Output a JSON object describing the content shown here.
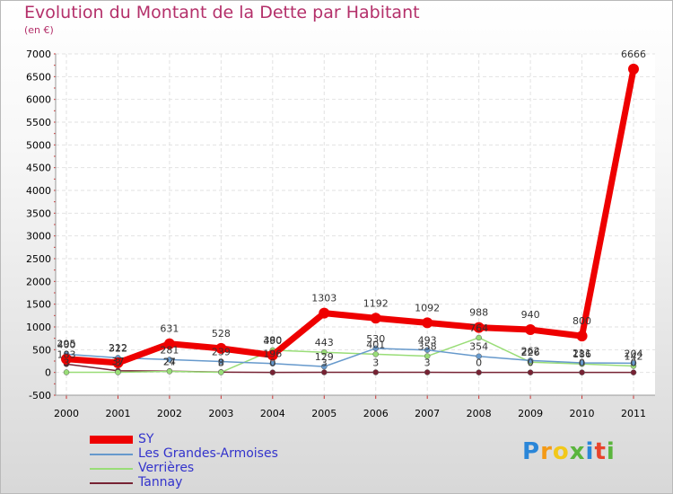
{
  "chart_data": {
    "type": "line",
    "title": "Evolution du Montant de la Dette par Habitant",
    "subtitle": "(en €)",
    "xlabel": "",
    "ylabel": "",
    "ylim": [
      -500,
      7000
    ],
    "yticks": [
      -500,
      0,
      500,
      1000,
      1500,
      2000,
      2500,
      3000,
      3500,
      4000,
      4500,
      5000,
      5500,
      6000,
      6500,
      7000
    ],
    "categories": [
      "2000",
      "2001",
      "2002",
      "2003",
      "2004",
      "2005",
      "2006",
      "2007",
      "2008",
      "2009",
      "2010",
      "2011"
    ],
    "series": [
      {
        "name": "SY",
        "color": "#ee0000",
        "values": [
          295,
          212,
          631,
          528,
          380,
          1303,
          1192,
          1092,
          988,
          940,
          800,
          6666
        ],
        "labels": [
          "295",
          "212",
          "631",
          "528",
          "380",
          "1303",
          "1192",
          "1092",
          "988",
          "940",
          "800",
          "6666"
        ]
      },
      {
        "name": "Les Grandes-Armoises",
        "color": "#6699cc",
        "values": [
          400,
          322,
          281,
          239,
          196,
          129,
          530,
          493,
          354,
          262,
          211,
          204
        ],
        "labels": [
          "400",
          "322",
          "281",
          "239",
          "196",
          "129",
          "530",
          "493",
          "354",
          "262",
          "211",
          "204"
        ]
      },
      {
        "name": "Verrières",
        "color": "#99dd77",
        "values": [
          3,
          3,
          24,
          3,
          490,
          443,
          401,
          358,
          764,
          226,
          186,
          142
        ],
        "labels": [
          "3",
          "3",
          "24",
          "3",
          "490",
          "443",
          "401",
          "358",
          "764",
          "226",
          "186",
          "142"
        ]
      },
      {
        "name": "Tannay",
        "color": "#772233",
        "values": [
          183,
          37,
          27,
          8,
          0,
          3,
          3,
          3,
          0,
          0,
          0,
          0
        ],
        "labels": [
          "183",
          "37",
          "27",
          "8",
          "0",
          "3",
          "3",
          "3",
          "0",
          "0",
          "0",
          "0"
        ]
      }
    ],
    "legend_position": "bottom-left"
  },
  "logo": {
    "letters": [
      "P",
      "r",
      "o",
      "x",
      "i",
      "t",
      "i"
    ],
    "colors": [
      "#2a86d8",
      "#f49a16",
      "#f2c81a",
      "#5ab53d",
      "#2a86d8",
      "#e8432c",
      "#5ab53d"
    ]
  }
}
